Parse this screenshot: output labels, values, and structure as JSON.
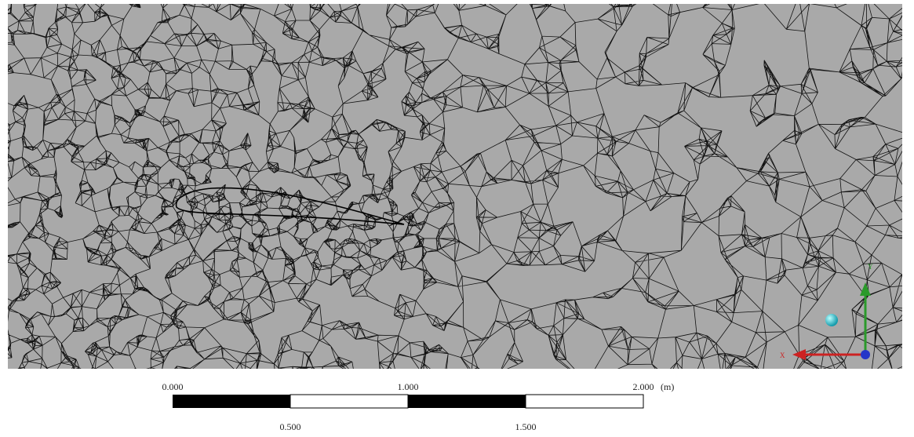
{
  "scale_bar": {
    "top_labels": [
      "0.000",
      "1.000",
      "2.000"
    ],
    "unit": "(m)",
    "bottom_labels": [
      "0.500",
      "1.500"
    ]
  },
  "triad": {
    "y": "Y",
    "x": "X"
  }
}
